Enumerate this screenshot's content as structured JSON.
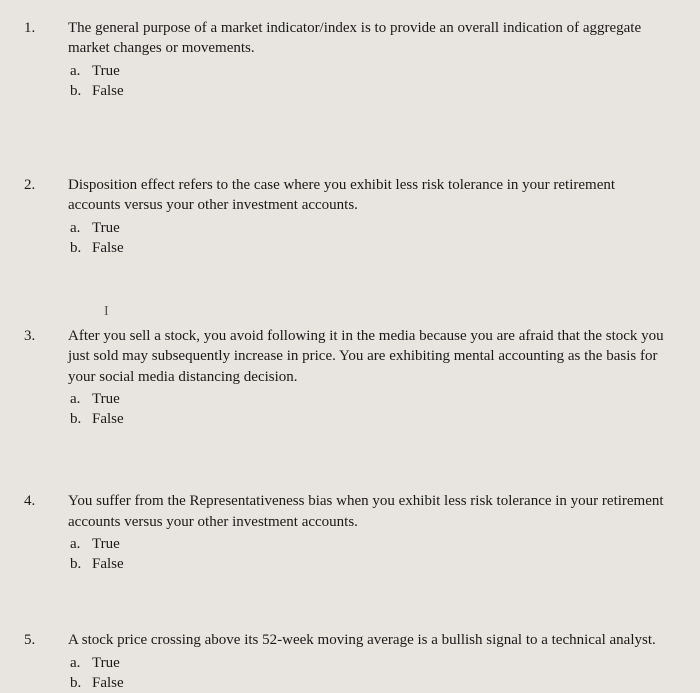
{
  "questions": [
    {
      "number": "1.",
      "stem": "The general purpose of a market indicator/index is to provide an overall indication of aggregate market changes or movements.",
      "option_a_letter": "a.",
      "option_a_text": "True",
      "option_b_letter": "b.",
      "option_b_text": "False"
    },
    {
      "number": "2.",
      "stem": "Disposition effect refers to the case where you exhibit less risk tolerance in your retirement accounts versus your other investment accounts.",
      "option_a_letter": "a.",
      "option_a_text": "True",
      "option_b_letter": "b.",
      "option_b_text": "False"
    },
    {
      "number": "3.",
      "stem": "After you sell a stock, you avoid following it in the media because you are afraid that the stock you just sold may subsequently increase in price. You are exhibiting mental accounting as the basis for your social media distancing decision.",
      "option_a_letter": "a.",
      "option_a_text": "True",
      "option_b_letter": "b.",
      "option_b_text": "False"
    },
    {
      "number": "4.",
      "stem": "You suffer from the Representativeness bias when you exhibit less risk tolerance in your retirement accounts versus your other investment accounts.",
      "option_a_letter": "a.",
      "option_a_text": "True",
      "option_b_letter": "b.",
      "option_b_text": "False"
    },
    {
      "number": "5.",
      "stem": "A stock price crossing above its 52-week moving average is a bullish signal to a technical analyst.",
      "option_a_letter": "a.",
      "option_a_text": "True",
      "option_b_letter": "b.",
      "option_b_text": "False"
    }
  ],
  "cursor_glyph": "I"
}
